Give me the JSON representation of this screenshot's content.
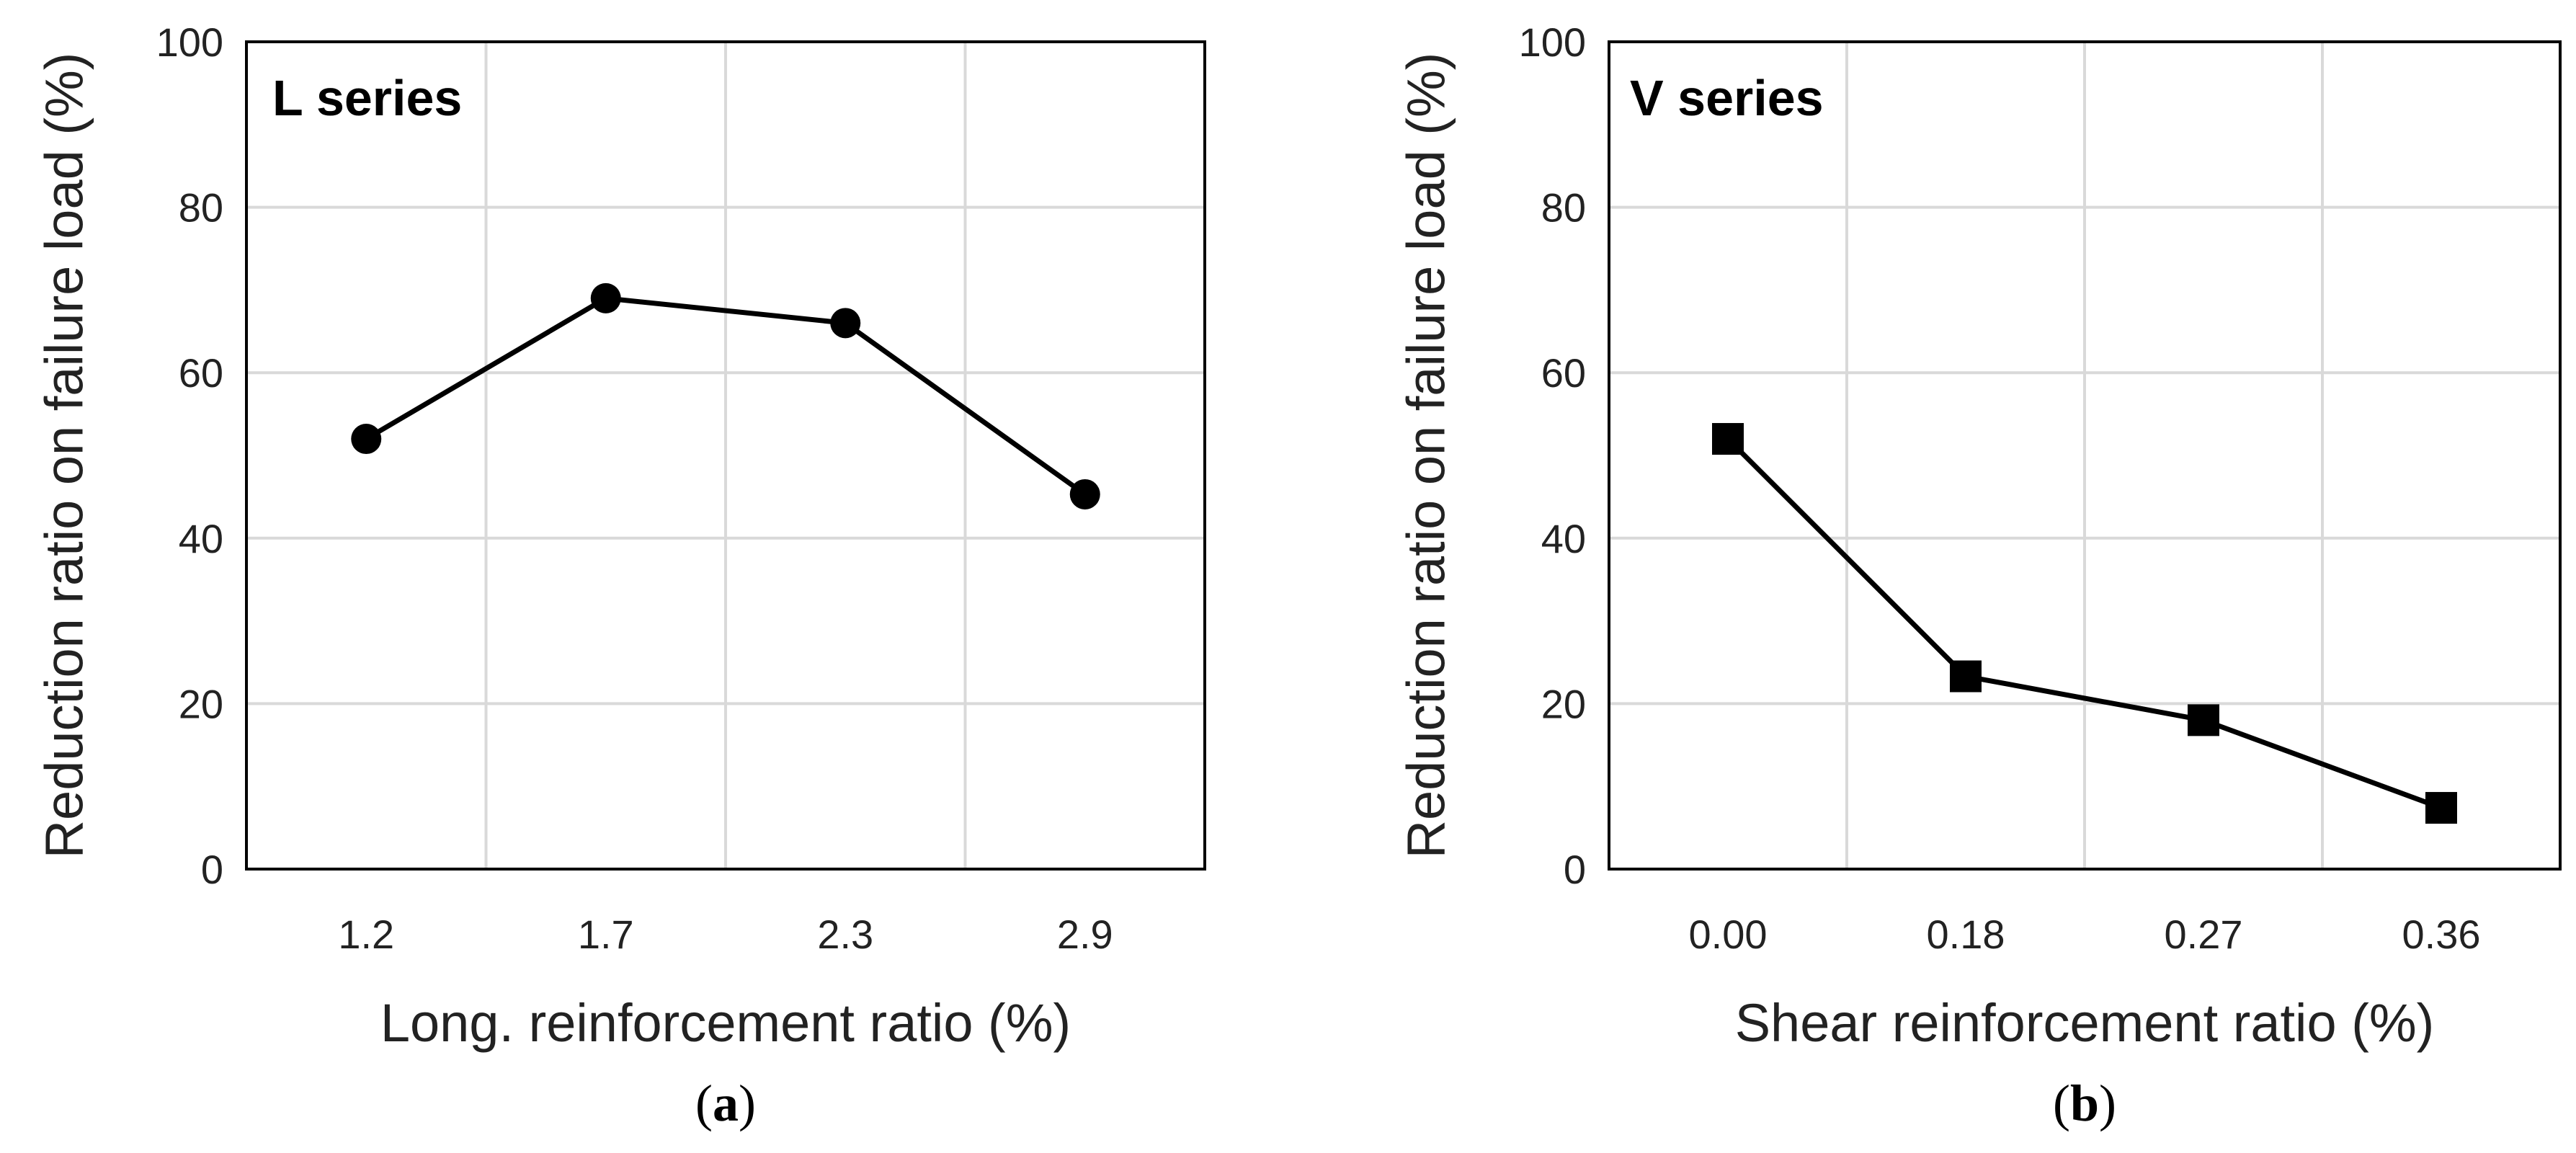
{
  "colors": {
    "line": "#000000",
    "grid": "#d9d9d9",
    "frame": "#000000",
    "text": "#222222"
  },
  "chart_data": [
    {
      "type": "line",
      "panel_label": {
        "open": "(",
        "letter": "a",
        "close": ")"
      },
      "series_label": "L series",
      "xlabel": "Long. reinforcement ratio (%)",
      "ylabel": "Reduction ratio on failure load (%)",
      "categories": [
        "1.2",
        "1.7",
        "2.3",
        "2.9"
      ],
      "values": [
        52,
        69,
        66,
        45.3
      ],
      "marker": "circle",
      "ylim": [
        0,
        100
      ],
      "yticks": [
        0,
        20,
        40,
        60,
        80,
        100
      ],
      "grid": true
    },
    {
      "type": "line",
      "panel_label": {
        "open": "(",
        "letter": "b",
        "close": ")"
      },
      "series_label": "V series",
      "xlabel": "Shear reinforcement ratio (%)",
      "ylabel": "Reduction ratio on failure load (%)",
      "categories": [
        "0.00",
        "0.18",
        "0.27",
        "0.36"
      ],
      "values": [
        52,
        23.3,
        18,
        7.4
      ],
      "marker": "square",
      "ylim": [
        0,
        100
      ],
      "yticks": [
        0,
        20,
        40,
        60,
        80,
        100
      ],
      "grid": true
    }
  ]
}
